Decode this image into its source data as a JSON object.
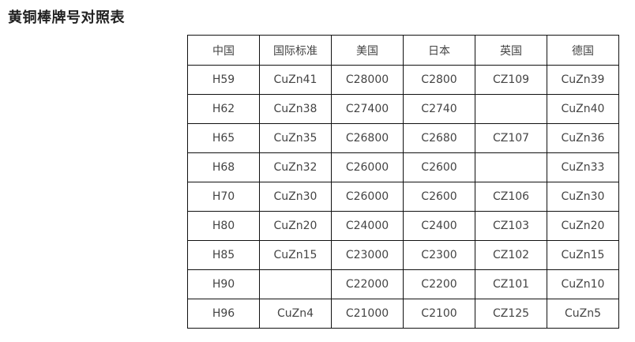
{
  "title": "黄铜棒牌号对照表",
  "table": {
    "headers": [
      "中国",
      "国际标准",
      "美国",
      "日本",
      "英国",
      "德国"
    ],
    "rows": [
      [
        "H59",
        "CuZn41",
        "C28000",
        "C2800",
        "CZ109",
        "CuZn39"
      ],
      [
        "H62",
        "CuZn38",
        "C27400",
        "C2740",
        "",
        "CuZn40"
      ],
      [
        "H65",
        "CuZn35",
        "C26800",
        "C2680",
        "CZ107",
        "CuZn36"
      ],
      [
        "H68",
        "CuZn32",
        "C26000",
        "C2600",
        "",
        "CuZn33"
      ],
      [
        "H70",
        "CuZn30",
        "C26000",
        "C2600",
        "CZ106",
        "CuZn30"
      ],
      [
        "H80",
        "CuZn20",
        "C24000",
        "C2400",
        "CZ103",
        "CuZn20"
      ],
      [
        "H85",
        "CuZn15",
        "C23000",
        "C2300",
        "CZ102",
        "CuZn15"
      ],
      [
        "H90",
        "",
        "C22000",
        "C2200",
        "CZ101",
        "CuZn10"
      ],
      [
        "H96",
        "CuZn4",
        "C21000",
        "C2100",
        "CZ125",
        "CuZn5"
      ]
    ]
  }
}
